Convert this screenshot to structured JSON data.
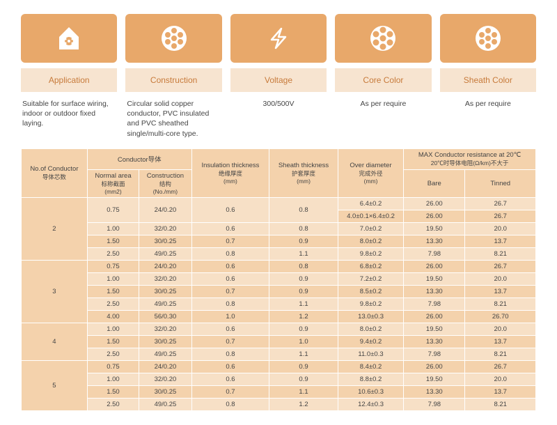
{
  "icons": [
    "application",
    "construction",
    "voltage",
    "core-color",
    "sheath-color"
  ],
  "labels": [
    "Application",
    "Construction",
    "Voltage",
    "Core Color",
    "Sheath Color"
  ],
  "descs": [
    "Suitable for surface wiring, indoor or outdoor fixed laying.",
    "Circular solid copper conductor,\nPVC insulated and PVC sheathed\nsingle/multi-core type.",
    "300/500V",
    "As per require",
    "As per require"
  ],
  "headers": {
    "no_of_conductor": "No.of Conductor",
    "no_of_conductor_cn": "导体芯数",
    "conductor": "Conductor导体",
    "normal_area": "Normal area",
    "normal_area_cn": "标称截面",
    "normal_area_unit": "(mm2)",
    "construction": "Construction",
    "construction_cn": "结构",
    "construction_unit": "(No./mm)",
    "insulation": "Insulation thickness",
    "insulation_cn": "绝缘厚度",
    "insulation_unit": "(mm)",
    "sheath": "Sheath thickness",
    "sheath_cn": "护套厚度",
    "sheath_unit": "(mm)",
    "over_diameter": "Over diameter",
    "over_diameter_cn": "完成外径",
    "over_diameter_unit": "(mm)",
    "max_resistance": "MAX Conductor resistance at 20℃",
    "max_resistance_cn": "20℃时导体电阻(Ω/km)不大于",
    "bare": "Bare",
    "tinned": "Tinned"
  },
  "groups": [
    {
      "cores": "2",
      "span": 5,
      "rows": [
        {
          "area": "0.75",
          "cons": "24/0.20",
          "ins": "0.6",
          "sh": "0.8",
          "dia": "6.4±0.2",
          "bare": "26.00",
          "tin": "26.7",
          "span": "2"
        },
        {
          "dia": "4.0±0.1×6.4±0.2",
          "bare": "26.00",
          "tin": "26.7"
        },
        {
          "area": "1.00",
          "cons": "32/0.20",
          "ins": "0.6",
          "sh": "0.8",
          "dia": "7.0±0.2",
          "bare": "19.50",
          "tin": "20.0"
        },
        {
          "area": "1.50",
          "cons": "30/0.25",
          "ins": "0.7",
          "sh": "0.9",
          "dia": "8.0±0.2",
          "bare": "13.30",
          "tin": "13.7"
        },
        {
          "area": "2.50",
          "cons": "49/0.25",
          "ins": "0.8",
          "sh": "1.1",
          "dia": "9.8±0.2",
          "bare": "7.98",
          "tin": "8.21"
        }
      ]
    },
    {
      "cores": "3",
      "span": 5,
      "rows": [
        {
          "area": "0.75",
          "cons": "24/0.20",
          "ins": "0.6",
          "sh": "0.8",
          "dia": "6.8±0.2",
          "bare": "26.00",
          "tin": "26.7"
        },
        {
          "area": "1.00",
          "cons": "32/0.20",
          "ins": "0.6",
          "sh": "0.9",
          "dia": "7.2±0.2",
          "bare": "19.50",
          "tin": "20.0"
        },
        {
          "area": "1.50",
          "cons": "30/0.25",
          "ins": "0.7",
          "sh": "0.9",
          "dia": "8.5±0.2",
          "bare": "13.30",
          "tin": "13.7"
        },
        {
          "area": "2.50",
          "cons": "49/0.25",
          "ins": "0.8",
          "sh": "1.1",
          "dia": "9.8±0.2",
          "bare": "7.98",
          "tin": "8.21"
        },
        {
          "area": "4.00",
          "cons": "56/0.30",
          "ins": "1.0",
          "sh": "1.2",
          "dia": "13.0±0.3",
          "bare": "26.00",
          "tin": "26.70"
        }
      ]
    },
    {
      "cores": "4",
      "span": 3,
      "rows": [
        {
          "area": "1.00",
          "cons": "32/0.20",
          "ins": "0.6",
          "sh": "0.9",
          "dia": "8.0±0.2",
          "bare": "19.50",
          "tin": "20.0"
        },
        {
          "area": "1.50",
          "cons": "30/0.25",
          "ins": "0.7",
          "sh": "1.0",
          "dia": "9.4±0.2",
          "bare": "13.30",
          "tin": "13.7"
        },
        {
          "area": "2.50",
          "cons": "49/0.25",
          "ins": "0.8",
          "sh": "1.1",
          "dia": "11.0±0.3",
          "bare": "7.98",
          "tin": "8.21"
        }
      ]
    },
    {
      "cores": "5",
      "span": 4,
      "rows": [
        {
          "area": "0.75",
          "cons": "24/0.20",
          "ins": "0.6",
          "sh": "0.9",
          "dia": "8.4±0.2",
          "bare": "26.00",
          "tin": "26.7"
        },
        {
          "area": "1.00",
          "cons": "32/0.20",
          "ins": "0.6",
          "sh": "0.9",
          "dia": "8.8±0.2",
          "bare": "19.50",
          "tin": "20.0"
        },
        {
          "area": "1.50",
          "cons": "30/0.25",
          "ins": "0.7",
          "sh": "1.1",
          "dia": "10.6±0.3",
          "bare": "13.30",
          "tin": "13.7"
        },
        {
          "area": "2.50",
          "cons": "49/0.25",
          "ins": "0.8",
          "sh": "1.2",
          "dia": "12.4±0.3",
          "bare": "7.98",
          "tin": "8.21"
        }
      ]
    }
  ]
}
